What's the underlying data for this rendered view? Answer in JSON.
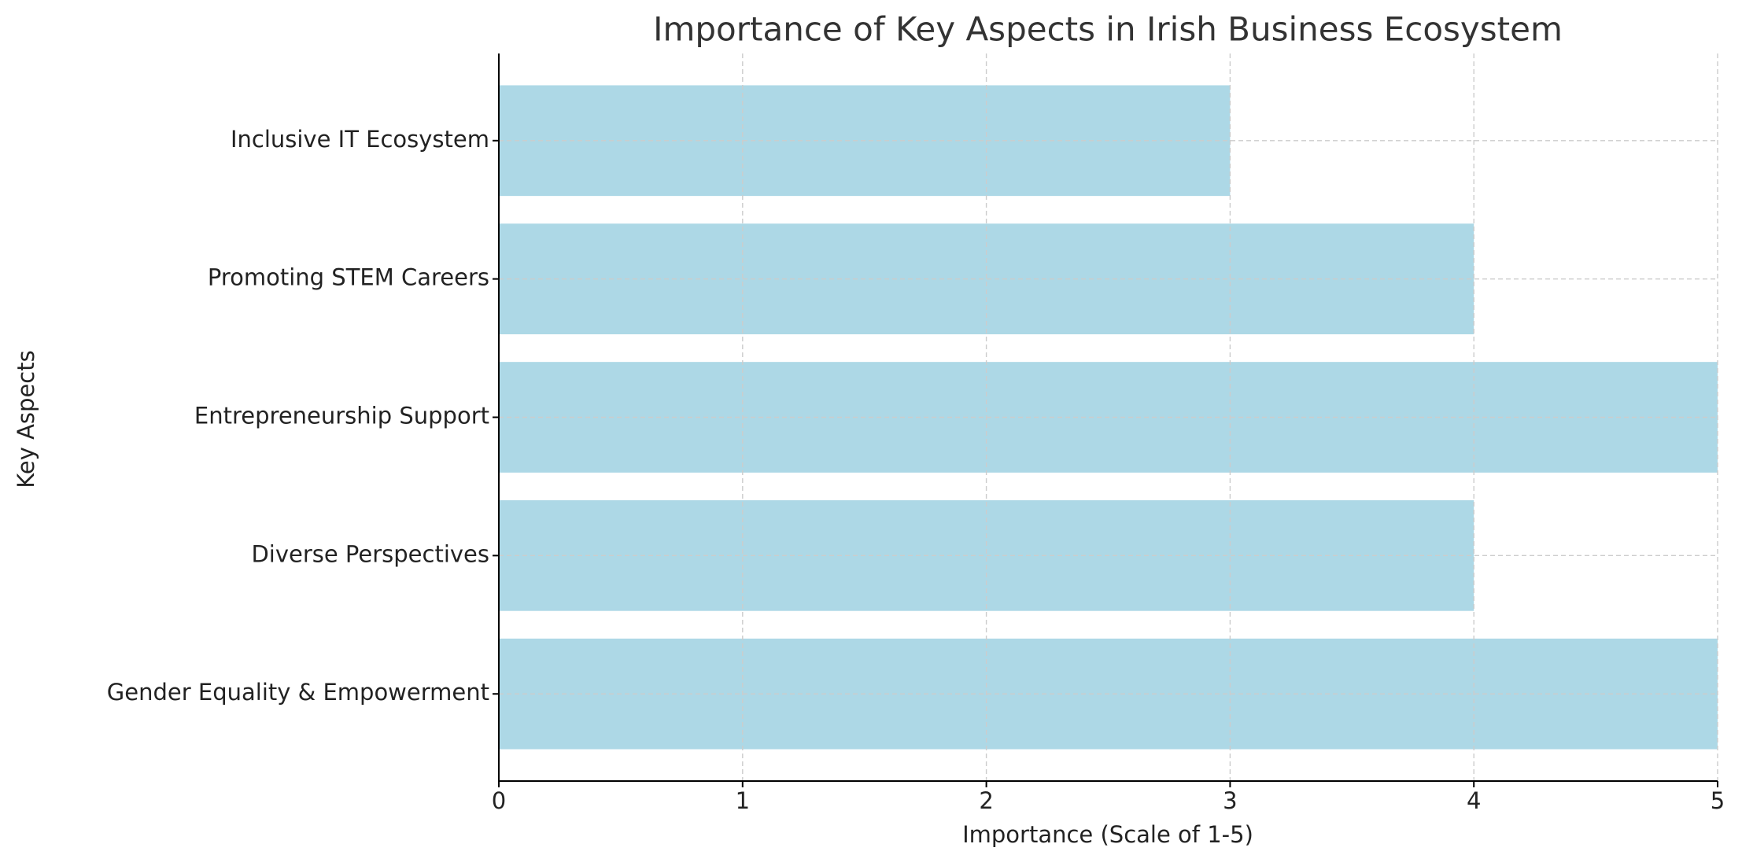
{
  "chart_data": {
    "type": "barh",
    "title": "Importance of Key Aspects in Irish Business Ecosystem",
    "xlabel": "Importance (Scale of 1-5)",
    "ylabel": "Key Aspects",
    "categories": [
      "Gender Equality & Empowerment",
      "Diverse Perspectives",
      "Entrepreneurship Support",
      "Promoting STEM Careers",
      "Inclusive IT Ecosystem"
    ],
    "values": [
      5,
      4,
      5,
      4,
      3
    ],
    "color": "#add8e6",
    "xlim": [
      0,
      5
    ],
    "xticks": [
      0,
      1,
      2,
      3,
      4,
      5
    ],
    "grid": true
  }
}
